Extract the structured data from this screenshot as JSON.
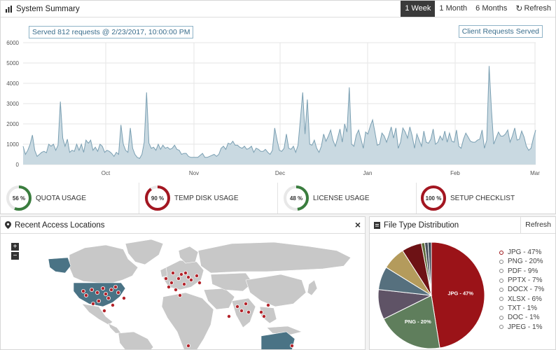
{
  "summary": {
    "title": "System Summary",
    "ranges": [
      "1 Week",
      "1 Month",
      "6 Months"
    ],
    "active_range": "1 Week",
    "refresh": "Refresh",
    "tooltip": "Served 812 requests @ 2/23/2017, 10:00:00 PM",
    "series_label": "Client Requests Served"
  },
  "chart_data": {
    "type": "area",
    "series": [
      {
        "name": "Client Requests Served",
        "values": [
          900,
          500,
          700,
          1000,
          1450,
          700,
          400,
          500,
          600,
          650,
          580,
          1000,
          900,
          1000,
          700,
          950,
          3100,
          1300,
          900,
          1250,
          600,
          700,
          650,
          1000,
          700,
          1000,
          600,
          1200,
          1050,
          1200,
          700,
          850,
          650,
          1000,
          900,
          600,
          700,
          650,
          550,
          400,
          600,
          500,
          1950,
          1000,
          700,
          600,
          1800,
          800,
          500,
          350,
          300,
          500,
          1100,
          3550,
          1050,
          800,
          850,
          700,
          1000,
          750,
          950,
          800,
          850,
          750,
          800,
          950,
          750,
          700,
          500,
          550,
          550,
          400,
          350,
          350,
          350,
          350,
          450,
          550,
          350,
          350,
          400,
          450,
          500,
          400,
          500,
          800,
          900,
          750,
          1050,
          1000,
          1150,
          950,
          950,
          850,
          800,
          900,
          750,
          800,
          900,
          600,
          800,
          750,
          650,
          650,
          750,
          600,
          500,
          700,
          1800,
          1200,
          700,
          650,
          800,
          1500,
          800,
          750,
          900,
          600,
          950,
          2200,
          3550,
          1500,
          3200,
          1000,
          950,
          1200,
          800,
          600,
          900,
          1500,
          1150,
          1400,
          1700,
          1200,
          900,
          1300,
          1750,
          1100,
          2000,
          1600,
          3800,
          1000,
          900,
          1450,
          1700,
          1250,
          800,
          1600,
          1500,
          1900,
          2200,
          1600,
          950,
          1000,
          1550,
          1400,
          1100,
          1450,
          1850,
          1300,
          1800,
          800,
          1100,
          1800,
          1600,
          1300,
          1850,
          1400,
          800,
          1500,
          1200,
          900,
          1650,
          1100,
          1050,
          1250,
          1750,
          1000,
          1100,
          1400,
          1200,
          1650,
          1100,
          1550,
          1150,
          1100,
          1700,
          900,
          800,
          1250,
          1550,
          1350,
          1150,
          1100,
          1100,
          1200,
          1250,
          1700,
          800,
          1200,
          4850,
          2700,
          1000,
          1300,
          1600,
          1400,
          1400,
          1500,
          1700,
          1100,
          1400,
          1800,
          1200,
          1250,
          1650,
          1350,
          900,
          700,
          800,
          1300,
          1700
        ]
      }
    ],
    "x_ticks": [
      "Oct",
      "Nov",
      "Dec",
      "Jan",
      "Feb",
      "Mar"
    ],
    "y_ticks": [
      0,
      1000,
      2000,
      3000,
      4000,
      5000,
      6000
    ],
    "ylim": [
      0,
      6000
    ],
    "color": "#c9d9e1",
    "line_color": "#7a9fb2",
    "grid": true
  },
  "gauges": [
    {
      "label": "QUOTA USAGE",
      "value": 56,
      "text": "56 %",
      "color": "#3a7d3e"
    },
    {
      "label": "TEMP DISK USAGE",
      "value": 90,
      "text": "90 %",
      "color": "#a31621"
    },
    {
      "label": "LICENSE USAGE",
      "value": 48,
      "text": "48 %",
      "color": "#3a7d3e"
    },
    {
      "label": "SETUP CHECKLIST",
      "value": 100,
      "text": "100 %",
      "color": "#a31621"
    }
  ],
  "map_panel": {
    "title": "Recent Access Locations",
    "close": "×",
    "zoom_in": "+",
    "zoom_out": "−"
  },
  "file_panel": {
    "title": "File Type Distribution",
    "refresh": "Refresh"
  },
  "pie_data": {
    "type": "pie",
    "slices": [
      {
        "name": "JPG",
        "value": 47,
        "color": "#9b1318",
        "label": "JPG - 47%",
        "legend": "JPG - 47%"
      },
      {
        "name": "PNG",
        "value": 20,
        "color": "#5f7e5c",
        "label": "PNG - 20%",
        "legend": "PNG - 20%"
      },
      {
        "name": "PDF",
        "value": 9,
        "color": "#5f5366",
        "label": "",
        "legend": "PDF - 9%"
      },
      {
        "name": "PPTX",
        "value": 7,
        "color": "#56707e",
        "label": "",
        "legend": "PPTX - 7%"
      },
      {
        "name": "DOCX",
        "value": 7,
        "color": "#b49b5c",
        "label": "",
        "legend": "DOCX - 7%"
      },
      {
        "name": "XLSX",
        "value": 6,
        "color": "#6d1215",
        "label": "",
        "legend": "XLSX - 6%"
      },
      {
        "name": "TXT",
        "value": 1,
        "color": "#5d6b3a",
        "label": "",
        "legend": "TXT - 1%"
      },
      {
        "name": "DOC",
        "value": 1,
        "color": "#484e5a",
        "label": "",
        "legend": "DOC - 1%"
      },
      {
        "name": "JPEG",
        "value": 1,
        "color": "#3b4a56",
        "label": "",
        "legend": "JPEG - 1%"
      }
    ]
  },
  "colors": {
    "map_land": "#c8c8c8",
    "map_active": "#4a7385",
    "marker": "#b3232a"
  }
}
